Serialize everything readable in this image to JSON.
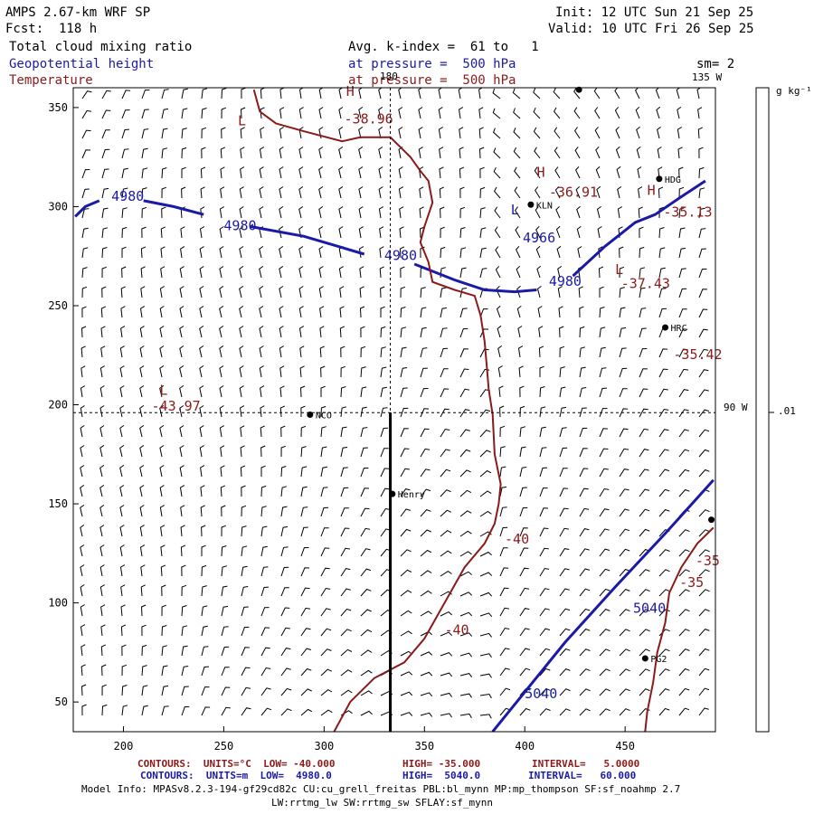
{
  "header": {
    "model": "AMPS 2.67-km WRF SP",
    "fcst": "Fcst:  118 h",
    "init": "Init: 12 UTC Sun 21 Sep 25",
    "valid": "Valid: 10 UTC Fri 26 Sep 25",
    "field1": "Total cloud mixing ratio",
    "field2": "Geopotential height",
    "field3": "Temperature",
    "avg": "Avg. k-index =  61 to   1",
    "pressure1": "at pressure =  500 hPa",
    "pressure2": "at pressure =  500 hPa",
    "sm": "sm= 2",
    "lon135": "135 W",
    "lon90": "90 W",
    "lon180": "180"
  },
  "colorbar": {
    "unit": "g kg⁻¹",
    "tick": ".01"
  },
  "footer": {
    "contours_temp": "CONTOURS:  UNITS=°C  LOW= -40.000",
    "contours_temp_high": "HIGH= -35.000",
    "contours_temp_int": "INTERVAL=   5.0000",
    "contours_hgt": "CONTOURS:  UNITS=m  LOW=  4980.0",
    "contours_hgt_high": "HIGH=  5040.0",
    "contours_hgt_int": "INTERVAL=   60.000",
    "model_info": "Model Info: MPASv8.2.3-194-gf29cd82c CU:cu_grell_freitas PBL:bl_mynn MP:mp_thompson SF:sf_noahmp 2.7",
    "model_info2": "LW:rrtmg_lw SW:rrtmg_sw SFLAY:sf_mynn"
  },
  "colors": {
    "height": "#1a1aa6",
    "temperature": "#8b1a1a",
    "axis": "#000000"
  },
  "chart_data": {
    "type": "contour map",
    "xlim": [
      175,
      495
    ],
    "ylim": [
      35,
      360
    ],
    "xticks": [
      200,
      250,
      300,
      350,
      400,
      450
    ],
    "yticks": [
      50,
      100,
      150,
      200,
      250,
      300,
      350
    ],
    "stations": [
      {
        "name": "NCO",
        "x": 293,
        "y": 195
      },
      {
        "name": "Henry",
        "x": 334,
        "y": 155
      },
      {
        "name": "KLN",
        "x": 403,
        "y": 301
      },
      {
        "name": "HDG",
        "x": 467,
        "y": 314
      },
      {
        "name": "HRC",
        "x": 470,
        "y": 239
      },
      {
        "name": "PG2",
        "x": 460,
        "y": 72
      },
      {
        "name": "",
        "x": 427,
        "y": 359
      },
      {
        "name": "",
        "x": 493,
        "y": 142
      }
    ],
    "height_labels": [
      {
        "text": "4980",
        "x": 194,
        "y": 303
      },
      {
        "text": "4980",
        "x": 250,
        "y": 288
      },
      {
        "text": "4980",
        "x": 330,
        "y": 273
      },
      {
        "text": "4966",
        "x": 399,
        "y": 282
      },
      {
        "text": "4980",
        "x": 412,
        "y": 260
      },
      {
        "text": "5040",
        "x": 454,
        "y": 95
      },
      {
        "text": "5040",
        "x": 400,
        "y": 52
      }
    ],
    "temp_labels": [
      {
        "text": "-38.96",
        "x": 310,
        "y": 342
      },
      {
        "text": "-36.91",
        "x": 412,
        "y": 305
      },
      {
        "text": "-35.13",
        "x": 469,
        "y": 295
      },
      {
        "text": "-37.43",
        "x": 448,
        "y": 259
      },
      {
        "text": "-35.42",
        "x": 474,
        "y": 223
      },
      {
        "text": "-43.97",
        "x": 214,
        "y": 197
      },
      {
        "text": "-40",
        "x": 390,
        "y": 130
      },
      {
        "text": "-40",
        "x": 360,
        "y": 84
      },
      {
        "text": "-35",
        "x": 485,
        "y": 119
      },
      {
        "text": "-35",
        "x": 477,
        "y": 108
      }
    ],
    "pressure_systems": [
      {
        "text": "H",
        "x": 311,
        "y": 356,
        "kind": "temp"
      },
      {
        "text": "L",
        "x": 257,
        "y": 341,
        "kind": "temp"
      },
      {
        "text": "H",
        "x": 406,
        "y": 315,
        "kind": "temp"
      },
      {
        "text": "H",
        "x": 461,
        "y": 306,
        "kind": "temp"
      },
      {
        "text": "L",
        "x": 445,
        "y": 266,
        "kind": "temp"
      },
      {
        "text": "L",
        "x": 218,
        "y": 205,
        "kind": "temp"
      },
      {
        "text": "L",
        "x": 393,
        "y": 296,
        "kind": "height"
      }
    ],
    "height_contours": [
      [
        [
          176,
          295
        ],
        [
          181,
          300
        ],
        [
          188,
          303
        ]
      ],
      [
        [
          210,
          303
        ],
        [
          225,
          300
        ],
        [
          240,
          296
        ]
      ],
      [
        [
          263,
          290
        ],
        [
          290,
          285
        ],
        [
          320,
          276
        ]
      ],
      [
        [
          345,
          271
        ],
        [
          365,
          263
        ],
        [
          380,
          258
        ],
        [
          395,
          257
        ],
        [
          406,
          258
        ]
      ],
      [
        [
          424,
          265
        ],
        [
          440,
          280
        ],
        [
          455,
          292
        ],
        [
          465,
          296
        ],
        [
          478,
          305
        ],
        [
          490,
          313
        ]
      ],
      [
        [
          384,
          35
        ],
        [
          400,
          55
        ],
        [
          420,
          80
        ],
        [
          445,
          108
        ],
        [
          470,
          135
        ],
        [
          494,
          162
        ]
      ]
    ],
    "temp_contours": [
      [
        [
          265,
          359
        ],
        [
          268,
          348
        ],
        [
          276,
          342
        ],
        [
          290,
          338
        ],
        [
          309,
          333
        ],
        [
          318,
          335
        ],
        [
          333,
          335
        ],
        [
          338,
          330
        ],
        [
          343,
          325
        ],
        [
          348,
          318
        ],
        [
          352,
          313
        ],
        [
          354,
          302
        ],
        [
          350,
          290
        ],
        [
          348,
          282
        ],
        [
          352,
          272
        ],
        [
          354,
          262
        ],
        [
          365,
          258
        ],
        [
          375,
          255
        ],
        [
          378,
          245
        ],
        [
          380,
          232
        ],
        [
          381,
          220
        ],
        [
          382,
          208
        ],
        [
          384,
          195
        ],
        [
          385,
          175
        ],
        [
          388,
          160
        ],
        [
          387,
          150
        ],
        [
          385,
          140
        ],
        [
          380,
          130
        ],
        [
          370,
          118
        ],
        [
          360,
          100
        ],
        [
          350,
          82
        ],
        [
          340,
          70
        ],
        [
          325,
          62
        ],
        [
          313,
          50
        ],
        [
          305,
          35
        ]
      ],
      [
        [
          460,
          35
        ],
        [
          461,
          45
        ],
        [
          464,
          60
        ],
        [
          466,
          75
        ],
        [
          470,
          90
        ],
        [
          472,
          105
        ],
        [
          478,
          118
        ],
        [
          486,
          130
        ],
        [
          494,
          138
        ]
      ]
    ],
    "cross_lines": {
      "x": 333,
      "y": 196
    }
  }
}
